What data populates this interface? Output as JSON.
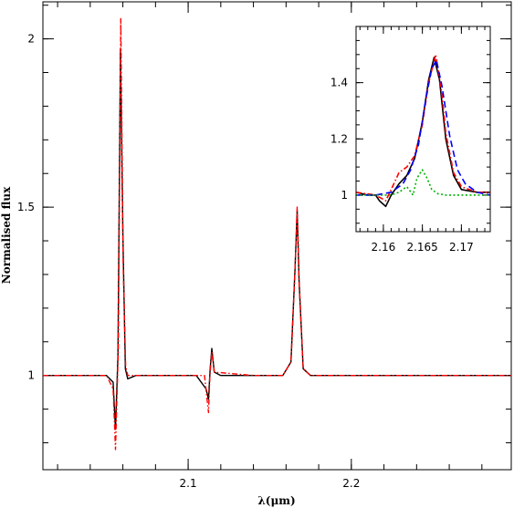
{
  "chart_data": [
    {
      "type": "line",
      "panel": "main",
      "xlabel": "λ(μm)",
      "ylabel": "Normalised flux",
      "xlim": [
        2.011,
        2.298
      ],
      "ylim": [
        0.72,
        2.11
      ],
      "xticks": [
        2.1,
        2.2
      ],
      "xtick_labels": [
        "2.1",
        "2.2"
      ],
      "yticks": [
        1,
        1.5,
        2
      ],
      "ytick_labels": [
        "1",
        "1.5",
        "2"
      ],
      "grid": false,
      "series": [
        {
          "color": "#000000",
          "style": "solid",
          "x": [
            2.011,
            2.03,
            2.05,
            2.054,
            2.0555,
            2.057,
            2.0585,
            2.06,
            2.0615,
            2.063,
            2.068,
            2.09,
            2.105,
            2.111,
            2.1125,
            2.1135,
            2.1145,
            2.116,
            2.12,
            2.14,
            2.158,
            2.163,
            2.1655,
            2.1668,
            2.168,
            2.1705,
            2.175,
            2.2,
            2.25,
            2.298
          ],
          "y": [
            1.0,
            1.0,
            1.0,
            0.98,
            0.84,
            1.06,
            1.97,
            1.42,
            1.02,
            0.99,
            1.0,
            1.0,
            1.0,
            0.96,
            0.93,
            1.02,
            1.08,
            1.01,
            1.0,
            1.0,
            1.0,
            1.04,
            1.32,
            1.49,
            1.28,
            1.02,
            1.0,
            1.0,
            1.0,
            1.0
          ]
        },
        {
          "color": "#ff0000",
          "style": "dashdot",
          "x": [
            2.011,
            2.05,
            2.054,
            2.0555,
            2.0572,
            2.0587,
            2.0602,
            2.0617,
            2.063,
            2.09,
            2.11,
            2.1125,
            2.1133,
            2.1145,
            2.116,
            2.14,
            2.158,
            2.163,
            2.1655,
            2.1668,
            2.168,
            2.1705,
            2.175,
            2.298
          ],
          "y": [
            1.0,
            1.0,
            0.96,
            0.78,
            1.08,
            2.06,
            1.33,
            1.03,
            1.0,
            1.0,
            1.0,
            0.89,
            1.0,
            1.07,
            1.01,
            1.0,
            1.0,
            1.04,
            1.32,
            1.5,
            1.28,
            1.02,
            1.0,
            1.0
          ]
        }
      ]
    },
    {
      "type": "line",
      "panel": "inset",
      "xlim": [
        2.1565,
        2.1737
      ],
      "ylim": [
        0.87,
        1.6
      ],
      "xticks": [
        2.16,
        2.165,
        2.17
      ],
      "xtick_labels": [
        "2.16",
        "2.165",
        "2.17"
      ],
      "yticks": [
        1,
        1.2,
        1.4
      ],
      "ytick_labels": [
        "1",
        "1.2",
        "1.4"
      ],
      "grid": false,
      "series": [
        {
          "color": "#000000",
          "style": "solid",
          "x": [
            2.1565,
            2.158,
            2.159,
            2.1595,
            2.1603,
            2.161,
            2.162,
            2.163,
            2.164,
            2.165,
            2.1658,
            2.1665,
            2.1672,
            2.168,
            2.169,
            2.17,
            2.172,
            2.1737
          ],
          "y": [
            1.01,
            1.0,
            1.0,
            0.98,
            0.96,
            1.0,
            1.04,
            1.07,
            1.13,
            1.26,
            1.41,
            1.49,
            1.41,
            1.2,
            1.07,
            1.02,
            1.01,
            1.01
          ]
        },
        {
          "color": "#ff0000",
          "style": "dashdot",
          "x": [
            2.1565,
            2.159,
            2.1603,
            2.161,
            2.162,
            2.163,
            2.164,
            2.165,
            2.1658,
            2.1667,
            2.1675,
            2.168,
            2.169,
            2.17,
            2.172,
            2.1737
          ],
          "y": [
            1.01,
            1.0,
            0.98,
            1.02,
            1.08,
            1.1,
            1.14,
            1.25,
            1.4,
            1.5,
            1.36,
            1.22,
            1.08,
            1.03,
            1.01,
            1.01
          ]
        },
        {
          "color": "#0000ff",
          "style": "dashed",
          "x": [
            2.1565,
            2.159,
            2.161,
            2.1625,
            2.1635,
            2.1645,
            2.1655,
            2.1662,
            2.1668,
            2.1675,
            2.1685,
            2.1695,
            2.1705,
            2.172,
            2.1737
          ],
          "y": [
            1.0,
            1.0,
            1.01,
            1.04,
            1.09,
            1.18,
            1.35,
            1.45,
            1.48,
            1.39,
            1.21,
            1.09,
            1.04,
            1.01,
            1.0
          ],
          "name": null
        },
        {
          "color": "#00b000",
          "style": "dotted",
          "x": [
            2.1565,
            2.161,
            2.162,
            2.163,
            2.1638,
            2.1643,
            2.165,
            2.1656,
            2.1662,
            2.167,
            2.168,
            2.1737
          ],
          "y": [
            1.0,
            1.0,
            1.01,
            1.03,
            1.0,
            1.06,
            1.09,
            1.06,
            1.02,
            1.005,
            1.0,
            1.0
          ]
        }
      ]
    }
  ]
}
